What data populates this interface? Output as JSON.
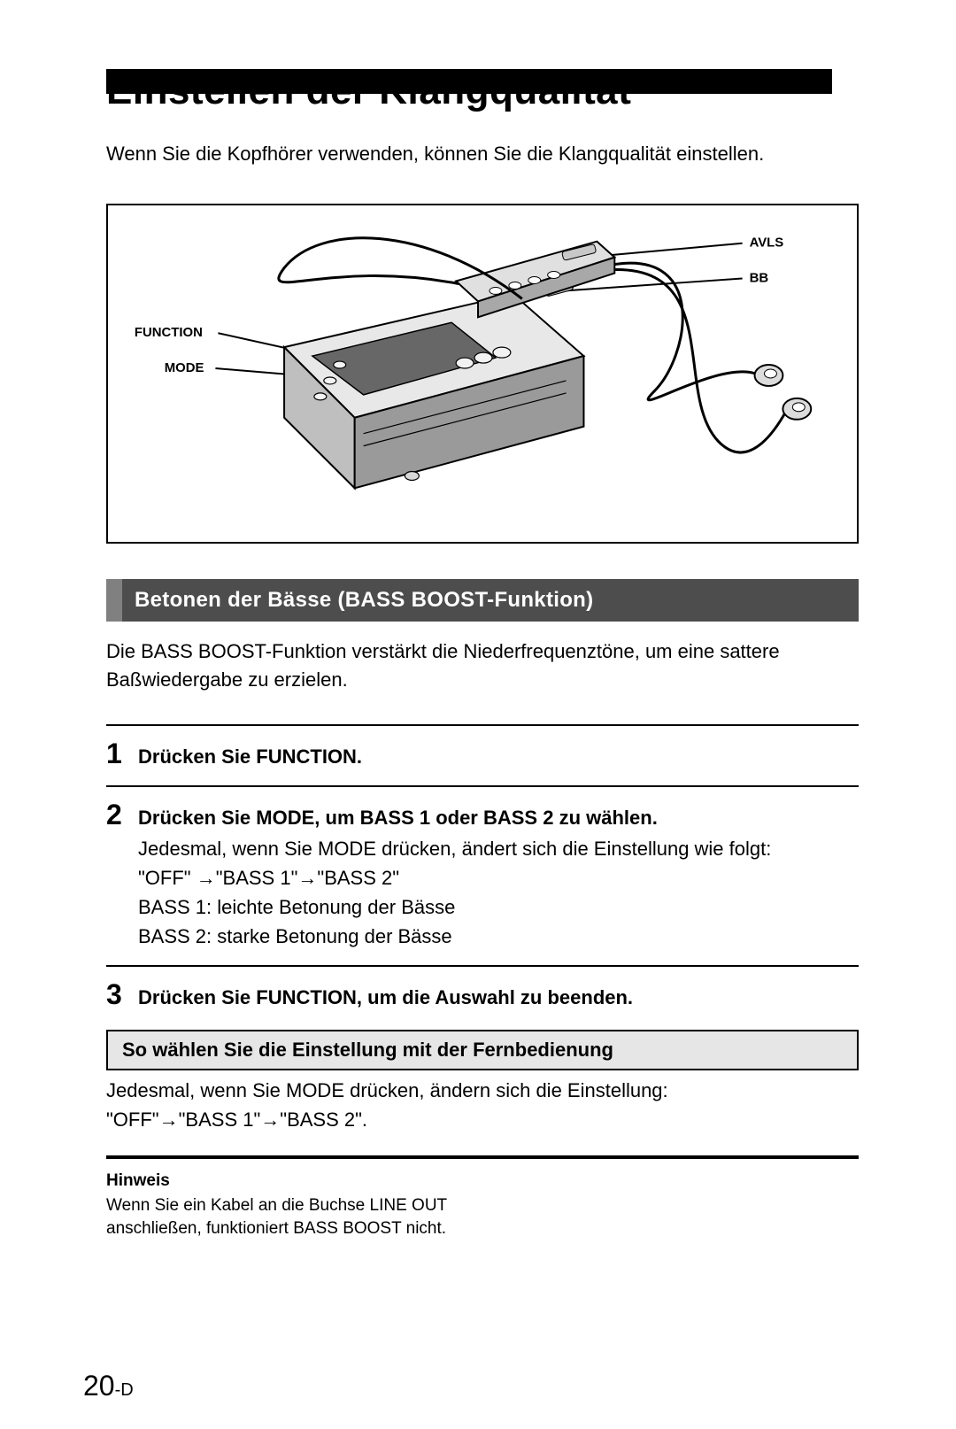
{
  "topbar": {
    "color": "#000000"
  },
  "title": "Einstellen der Klangqualität",
  "intro": "Wenn Sie die Kopfhörer verwenden, können Sie die Klangqualität einstellen.",
  "diagram": {
    "labels": {
      "avls": "AVLS",
      "bb": "BB",
      "function": "FUNCTION",
      "mode": "MODE"
    },
    "label_fontsize": 15,
    "line_color": "#000000",
    "device_stroke": "#000000",
    "device_fill_dark": "#4d4d4d",
    "device_fill_light": "#cfcfcf",
    "cable_color": "#000000"
  },
  "section": {
    "heading": "Betonen der Bässe (BASS BOOST-Funktion)",
    "accent_color": "#808080",
    "bar_color": "#4d4d4d",
    "bar_text_color": "#ffffff",
    "body": "Die BASS BOOST-Funktion verstärkt die Niederfrequenztöne, um eine sattere Baßwiedergabe zu erzielen."
  },
  "steps": [
    {
      "num": "1",
      "title": "Drücken Sie FUNCTION.",
      "detail": ""
    },
    {
      "num": "2",
      "title": "Drücken Sie MODE, um BASS 1 oder BASS 2 zu wählen.",
      "detail": "Jedesmal, wenn Sie MODE drücken, ändert sich die Einstellung wie folgt:\n\"OFF\" →\"BASS 1\"→\"BASS 2\"\nBASS 1: leichte Betonung der Bässe\nBASS 2: starke Betonung der Bässe"
    },
    {
      "num": "3",
      "title": "Drücken Sie FUNCTION, um die Auswahl zu beenden.",
      "detail": ""
    }
  ],
  "sub": {
    "heading": "So wählen Sie die Einstellung mit der Fernbedienung",
    "heading_bg": "#e6e6e6",
    "body": "Jedesmal, wenn Sie MODE drücken, ändern sich die Einstellung:\n\"OFF\"→\"BASS 1\"→\"BASS 2\"."
  },
  "hinweis": {
    "label": "Hinweis",
    "body": "Wenn Sie ein Kabel an die Buchse LINE OUT anschließen, funktioniert BASS BOOST nicht."
  },
  "pagenum": {
    "big": "20",
    "suffix": "-D"
  }
}
